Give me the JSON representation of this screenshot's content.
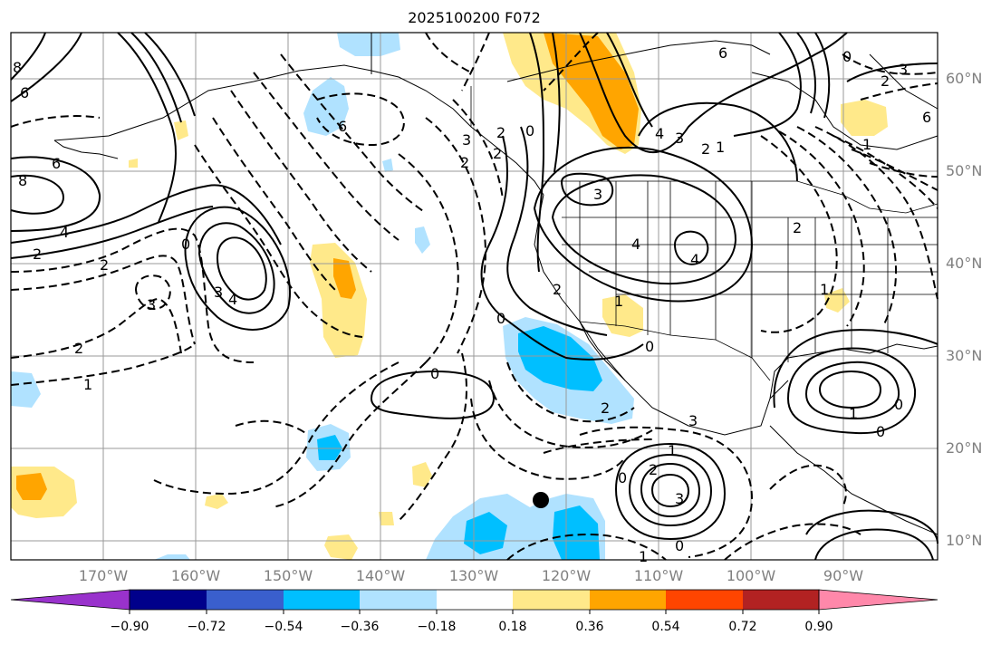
{
  "title": "2025100200 F072",
  "map": {
    "lat_labels": [
      "60°N",
      "50°N",
      "40°N",
      "30°N",
      "20°N",
      "10°N"
    ],
    "lon_labels": [
      "170°W",
      "160°W",
      "150°W",
      "140°W",
      "130°W",
      "120°W",
      "110°W",
      "100°W",
      "90°W"
    ],
    "contour_labels": [
      "6",
      "8",
      "6",
      "8",
      "4",
      "2",
      "2",
      "3",
      "0",
      "3",
      "4",
      "2",
      "1",
      "6",
      "6",
      "4",
      "3",
      "2",
      "1",
      "0",
      "2",
      "3",
      "6",
      "0",
      "2",
      "1",
      "4",
      "3",
      "2",
      "1",
      "4",
      "2",
      "2",
      "0",
      "1",
      "0",
      "2",
      "3",
      "3",
      "0",
      "2",
      "1",
      "0",
      "0",
      "3",
      "2",
      "1",
      "0",
      "0",
      "1"
    ],
    "marker": "black-dot"
  },
  "colorbar": {
    "ticks": [
      "−0.90",
      "−0.72",
      "−0.54",
      "−0.36",
      "−0.18",
      "0.18",
      "0.36",
      "0.54",
      "0.72",
      "0.90"
    ],
    "colors": [
      "#9932cc",
      "#00008b",
      "#3a5fcd",
      "#00bfff",
      "#b0e2ff",
      "#ffffff",
      "#ffe98a",
      "#ffa500",
      "#ff4500",
      "#b22222",
      "#ff88aa"
    ],
    "extend": "both"
  },
  "legend_fill_colors": {
    "neg_light": "#b0e2ff",
    "neg_mid": "#00bfff",
    "pos_light": "#ffe98a",
    "pos_mid": "#ffa500"
  }
}
